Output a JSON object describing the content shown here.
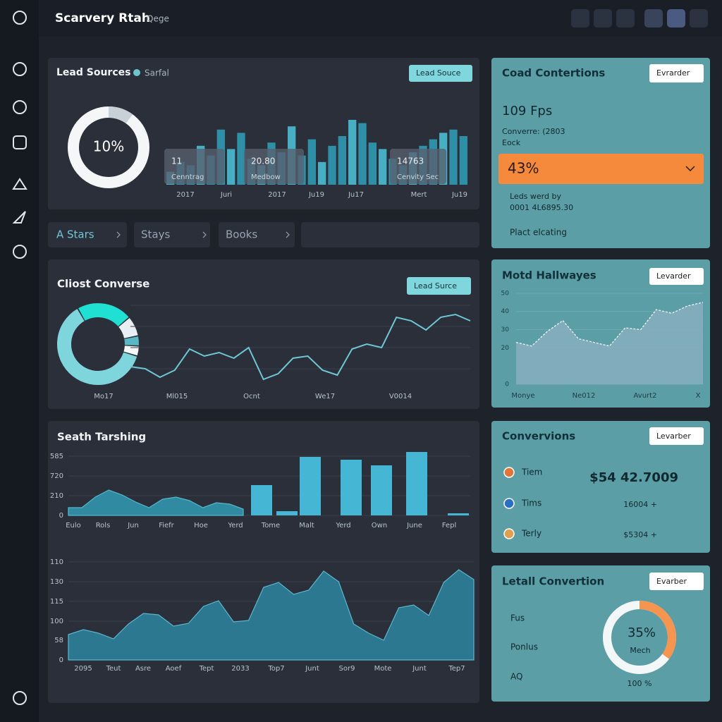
{
  "header": {
    "title": "Scarvery Rtah",
    "subtitle": "Qege"
  },
  "lead_sources": {
    "title": "Lead Sources",
    "legend": "Sarfal",
    "button": "Lead Souce",
    "donut": {
      "value": 10,
      "label": "10%"
    },
    "bars": [
      20,
      35,
      30,
      60,
      45,
      85,
      55,
      80,
      40,
      30,
      65,
      50,
      90,
      45,
      70,
      35,
      60,
      75,
      100,
      95,
      65,
      55,
      40,
      30,
      50,
      60,
      70,
      80,
      85,
      75
    ],
    "cards": [
      {
        "value": "11",
        "label": "Cenntrag"
      },
      {
        "value": "20.80",
        "label": "Medbow"
      },
      {
        "value": "14763",
        "label": "Cenvity Sec"
      }
    ],
    "x_labels": [
      "2017",
      "Juri",
      "2017",
      "Ju19",
      "Ju17",
      "Mert",
      "Ju19"
    ]
  },
  "tabs": [
    "A Stars",
    "Stays",
    "Books"
  ],
  "conversions_top": {
    "title": "Coad Contertions",
    "button": "Evrarder",
    "metric": "109 Fps",
    "line1": "Converre: (2803",
    "line2": "Eock",
    "highlight": "43%",
    "note1": "Leds werd by",
    "note2": "0001 4L6895.30",
    "footer": "Plact elcating"
  },
  "client_converse": {
    "title": "Cliost Converse",
    "button": "Lead Surce",
    "donut": [
      62,
      22,
      8,
      4,
      4
    ],
    "line": [
      40,
      37,
      25,
      35,
      65,
      55,
      60,
      52,
      67,
      22,
      30,
      52,
      55,
      35,
      28,
      65,
      72,
      67,
      110,
      105,
      92,
      110,
      114,
      105
    ],
    "x_labels": [
      "Mo17",
      "Ml015",
      "Ocnt",
      "We17",
      "V0014"
    ]
  },
  "hallways": {
    "title": "Motd Hallwayes",
    "button": "Levarder",
    "ylim": [
      0,
      55
    ],
    "yticks": [
      0,
      20,
      30,
      40,
      50
    ],
    "values": [
      23,
      21,
      29,
      35,
      25,
      23,
      21,
      31,
      30,
      41,
      39,
      43,
      45
    ],
    "x_labels": [
      "Monye",
      "Ne012",
      "Avurt2",
      "X"
    ]
  },
  "search": {
    "title": "Seath Tarshing",
    "y_labels": [
      "0",
      "210",
      "720",
      "585"
    ],
    "area": [
      11,
      11,
      26,
      36,
      29,
      19,
      11,
      23,
      26,
      21,
      11,
      18,
      16,
      9
    ],
    "bars": [
      43,
      6,
      83,
      79,
      71,
      90,
      3
    ],
    "x_labels": [
      "Eulo",
      "Rols",
      "Jun",
      "Fiefr",
      "Hoe",
      "Yerd",
      "Tome",
      "Malt",
      "Yerd",
      "Own",
      "June",
      "Fepl"
    ]
  },
  "trend": {
    "y_labels": [
      "0",
      "58",
      "100",
      "115",
      "130",
      "110"
    ],
    "values": [
      36,
      43,
      38,
      30,
      51,
      66,
      64,
      48,
      52,
      76,
      84,
      54,
      56,
      103,
      110,
      93,
      99,
      126,
      111,
      51,
      38,
      28,
      74,
      78,
      63,
      110,
      128,
      114
    ],
    "x_labels": [
      "2095",
      "Teut",
      "Asre",
      "Aoef",
      "Tept",
      "2033",
      "Top7",
      "Junt",
      "Sor9",
      "Mote",
      "Junt",
      "Tep7"
    ]
  },
  "convervions": {
    "title": "Convervions",
    "button": "Levarber",
    "rows": [
      {
        "label": "Tiem",
        "value": "$54 42.7009"
      },
      {
        "label": "Tims",
        "value": "16004 +"
      },
      {
        "label": "Terly",
        "value": "$5304 +"
      }
    ]
  },
  "letall": {
    "title": "Letall Convertion",
    "button": "Evarber",
    "labels": [
      "Fus",
      "Ponlus",
      "AQ"
    ],
    "donut": {
      "value": 35,
      "label": "35%",
      "caption": "Mech"
    },
    "footer": "100 %"
  }
}
